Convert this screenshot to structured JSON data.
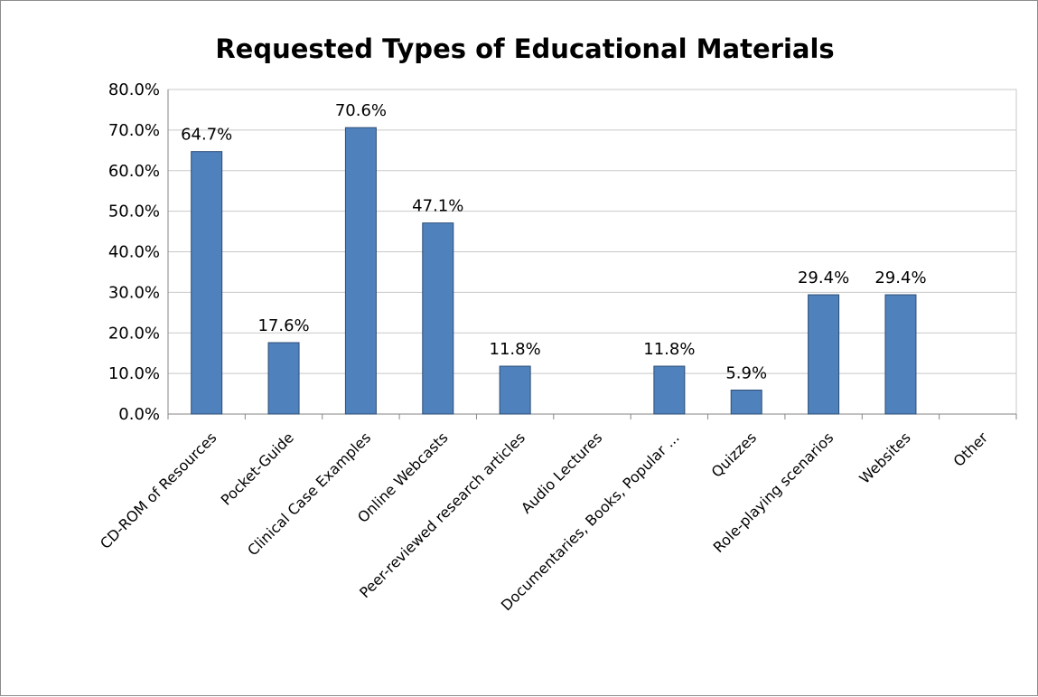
{
  "chart_data": {
    "type": "bar",
    "title": "Requested Types of Educational Materials",
    "xlabel": "",
    "ylabel": "",
    "ylim": [
      0,
      80
    ],
    "yticks": [
      "0.0%",
      "10.0%",
      "20.0%",
      "30.0%",
      "40.0%",
      "50.0%",
      "60.0%",
      "70.0%",
      "80.0%"
    ],
    "grid": true,
    "legend": "none",
    "categories": [
      "CD-ROM of Resources",
      "Pocket-Guide",
      "Clinical Case Examples",
      "Online Webcasts",
      "Peer-reviewed research articles",
      "Audio Lectures",
      "Documentaries, Books, Popular ...",
      "Quizzes",
      "Role-playing scenarios",
      "Websites",
      "Other"
    ],
    "values": [
      64.7,
      17.6,
      70.6,
      47.1,
      11.8,
      0,
      11.8,
      5.9,
      29.4,
      29.4,
      0
    ],
    "data_labels": [
      "64.7%",
      "17.6%",
      "70.6%",
      "47.1%",
      "11.8%",
      "",
      "11.8%",
      "5.9%",
      "29.4%",
      "29.4%",
      ""
    ],
    "colors": {
      "bar": "#4f81bd",
      "bar_border": "#2c4d75",
      "grid": "#c8c8c8",
      "axis": "#868686"
    }
  }
}
